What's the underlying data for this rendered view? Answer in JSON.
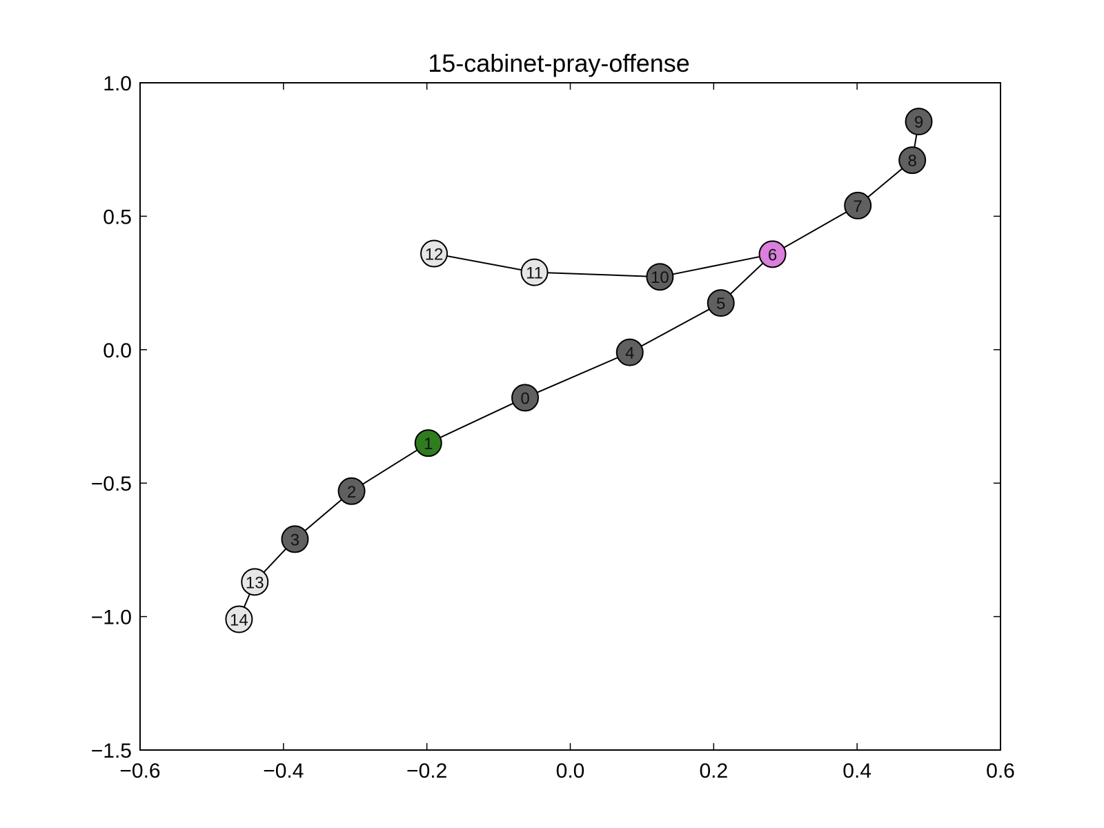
{
  "chart_data": {
    "type": "scatter",
    "title": "15-cabinet-pray-offense",
    "xlabel": "",
    "ylabel": "",
    "xlim": [
      -0.6,
      0.6
    ],
    "ylim": [
      -1.5,
      1.0
    ],
    "xticks": [
      -0.6,
      -0.4,
      -0.2,
      0.0,
      0.2,
      0.4,
      0.6
    ],
    "xtick_labels": [
      "−0.6",
      "−0.4",
      "−0.2",
      "0.0",
      "0.2",
      "0.4",
      "0.6"
    ],
    "yticks": [
      1.0,
      0.5,
      0.0,
      -0.5,
      -1.0,
      -1.5
    ],
    "ytick_labels": [
      "1.0",
      "0.5",
      "0.0",
      "−0.5",
      "−1.0",
      "−1.5"
    ],
    "grid": false,
    "legend": "none",
    "colors": {
      "dark": "#606060",
      "light": "#e6e6e6",
      "green": "#2f7d1f",
      "pink": "#da7fdc",
      "edge": "#000000"
    },
    "nodes": [
      {
        "id": "0",
        "x": -0.063,
        "y": -0.18,
        "color": "dark"
      },
      {
        "id": "1",
        "x": -0.198,
        "y": -0.35,
        "color": "green"
      },
      {
        "id": "2",
        "x": -0.305,
        "y": -0.53,
        "color": "dark"
      },
      {
        "id": "3",
        "x": -0.384,
        "y": -0.71,
        "color": "dark"
      },
      {
        "id": "4",
        "x": 0.083,
        "y": -0.01,
        "color": "dark"
      },
      {
        "id": "5",
        "x": 0.21,
        "y": 0.175,
        "color": "dark"
      },
      {
        "id": "6",
        "x": 0.282,
        "y": 0.358,
        "color": "pink"
      },
      {
        "id": "7",
        "x": 0.401,
        "y": 0.54,
        "color": "dark"
      },
      {
        "id": "8",
        "x": 0.477,
        "y": 0.71,
        "color": "dark"
      },
      {
        "id": "9",
        "x": 0.486,
        "y": 0.855,
        "color": "dark"
      },
      {
        "id": "10",
        "x": 0.125,
        "y": 0.273,
        "color": "dark"
      },
      {
        "id": "11",
        "x": -0.05,
        "y": 0.29,
        "color": "light"
      },
      {
        "id": "12",
        "x": -0.19,
        "y": 0.36,
        "color": "light"
      },
      {
        "id": "13",
        "x": -0.44,
        "y": -0.87,
        "color": "light"
      },
      {
        "id": "14",
        "x": -0.462,
        "y": -1.01,
        "color": "light"
      }
    ],
    "edges": [
      [
        "14",
        "13"
      ],
      [
        "13",
        "3"
      ],
      [
        "3",
        "2"
      ],
      [
        "2",
        "1"
      ],
      [
        "1",
        "0"
      ],
      [
        "0",
        "4"
      ],
      [
        "4",
        "5"
      ],
      [
        "5",
        "6"
      ],
      [
        "6",
        "7"
      ],
      [
        "7",
        "8"
      ],
      [
        "8",
        "9"
      ],
      [
        "6",
        "10"
      ],
      [
        "10",
        "11"
      ],
      [
        "11",
        "12"
      ]
    ]
  }
}
